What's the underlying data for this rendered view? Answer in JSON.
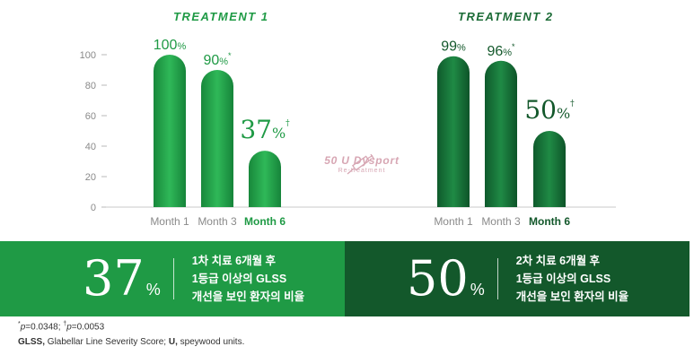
{
  "treatment1_title": "TREATMENT 1",
  "treatment2_title": "TREATMENT 2",
  "overlay": {
    "main": "50 U Dysport",
    "sub": "Re-treatment"
  },
  "colors": {
    "treatment1": "#1f9a45",
    "treatment2": "#13582b",
    "overlay": "#d7a6b3"
  },
  "icons": [
    "syringe-icon"
  ],
  "chart_data": {
    "type": "bar",
    "ylim": [
      0,
      100
    ],
    "yticks": [
      "0",
      "20",
      "40",
      "60",
      "80",
      "100"
    ],
    "grid": false,
    "groups": [
      {
        "name": "TREATMENT 1",
        "categories": [
          "Month 1",
          "Month 3",
          "Month 6"
        ],
        "values": [
          100,
          90,
          37
        ],
        "labels": [
          "100",
          "90",
          "37"
        ],
        "label_marks": [
          "",
          "*",
          "†"
        ]
      },
      {
        "name": "TREATMENT 2",
        "categories": [
          "Month 1",
          "Month 3",
          "Month 6"
        ],
        "values": [
          99,
          96,
          50
        ],
        "labels": [
          "99",
          "96",
          "50"
        ],
        "label_marks": [
          "",
          "*",
          "†"
        ]
      }
    ],
    "unit": "%",
    "bold_category": "Month 6"
  },
  "band1": {
    "value": "37",
    "unit": "%",
    "line1": "1차 치료 6개월 후",
    "line2": "1등급 이상의 GLSS",
    "line3": "개선을 보인 환자의 비율"
  },
  "band2": {
    "value": "50",
    "unit": "%",
    "line1": "2차 치료 6개월 후",
    "line2": "1등급 이상의 GLSS",
    "line3": "개선을 보인 환자의 비율"
  },
  "footnote1": {
    "mark1": "*",
    "p1": "p",
    "text1": "=0.0348; ",
    "mark2": "†",
    "p2": "p",
    "text2": "=0.0053"
  },
  "footnote2": {
    "bold1": "GLSS,",
    "text1": " Glabellar Line Severity Score; ",
    "bold2": "U,",
    "text2": " speywood units."
  }
}
